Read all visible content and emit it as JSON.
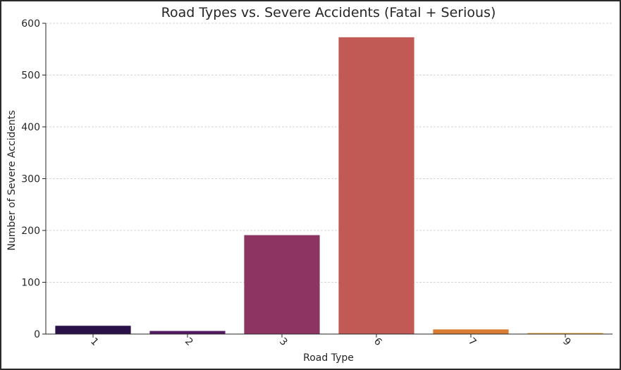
{
  "chart_data": {
    "type": "bar",
    "title": "Road Types vs. Severe Accidents (Fatal + Serious)",
    "xlabel": "Road Type",
    "ylabel": "Number of Severe Accidents",
    "categories": [
      "1",
      "2",
      "3",
      "6",
      "7",
      "9"
    ],
    "values": [
      16,
      6,
      191,
      573,
      9,
      2
    ],
    "colors": [
      "#2a1148",
      "#521a63",
      "#8c3562",
      "#c15a55",
      "#d97d33",
      "#e9a62a"
    ],
    "ylim": [
      0,
      600
    ],
    "yticks": [
      0,
      100,
      200,
      300,
      400,
      500,
      600
    ],
    "grid": "y-dashed",
    "legend": "none",
    "xtick_rotation": 45
  }
}
